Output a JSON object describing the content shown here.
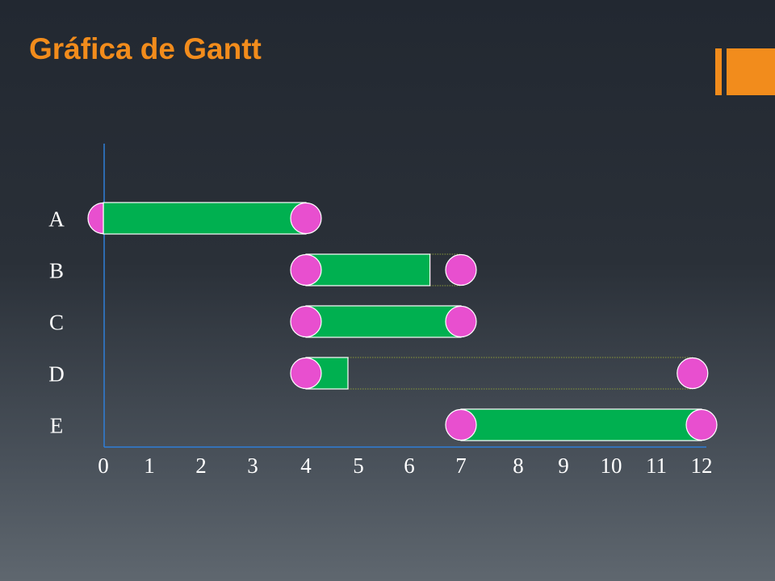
{
  "slide": {
    "title": "Gráfica de Gantt",
    "accent_color": "#f28c1c"
  },
  "chart_data": {
    "type": "gantt",
    "title": "Gráfica de Gantt",
    "xlabel": "",
    "ylabel": "",
    "x_ticks": [
      0,
      1,
      2,
      3,
      4,
      5,
      6,
      7,
      8,
      9,
      10,
      11,
      12
    ],
    "xlim": [
      0,
      12
    ],
    "tasks": [
      {
        "name": "A",
        "start": 0,
        "end": 4,
        "bar_end": 4,
        "slack_end": null
      },
      {
        "name": "B",
        "start": 4,
        "end": 7,
        "bar_end": 6.4,
        "slack_end": 7
      },
      {
        "name": "C",
        "start": 4,
        "end": 7,
        "bar_end": 7,
        "slack_end": null
      },
      {
        "name": "D",
        "start": 4,
        "end": 11.8,
        "bar_end": 4.8,
        "slack_end": 11.8
      },
      {
        "name": "E",
        "start": 7,
        "end": 12,
        "bar_end": 12,
        "slack_end": null
      }
    ],
    "colors": {
      "bar": "#00b050",
      "milestone": "#e84fcf",
      "axis": "#2f7fd8",
      "slack_line": "#8a9a3a"
    }
  }
}
